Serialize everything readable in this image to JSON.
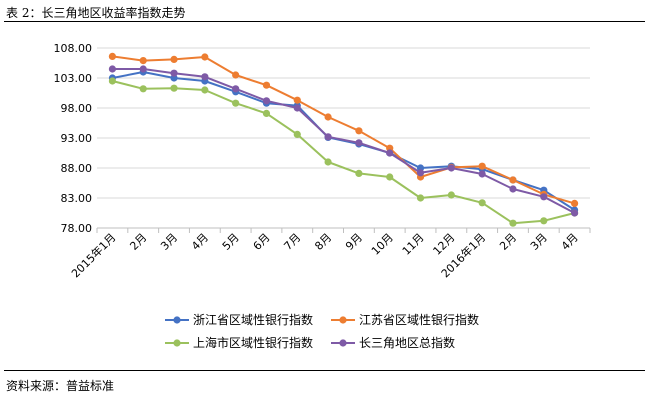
{
  "caption": {
    "label": "表 2：长三角地区收益率指数走势"
  },
  "source": {
    "label": "资料来源：普益标准"
  },
  "chart_data": {
    "type": "line",
    "title": "长三角地区收益率指数走势",
    "xlabel": "",
    "ylabel": "",
    "ylim": [
      78,
      108
    ],
    "ytick_values": [
      78,
      83,
      88,
      93,
      98,
      103,
      108
    ],
    "ytick_labels": [
      "78.00",
      "83.00",
      "88.00",
      "93.00",
      "98.00",
      "103.00",
      "108.00"
    ],
    "grid": true,
    "legend_position": "bottom",
    "categories": [
      "2015年1月",
      "2月",
      "3月",
      "4月",
      "5月",
      "6月",
      "7月",
      "8月",
      "9月",
      "10月",
      "11月",
      "12月",
      "2016年1月",
      "2月",
      "3月",
      "4月"
    ],
    "series": [
      {
        "name": "浙江省区域性银行指数",
        "color": "#4472C4",
        "values": [
          103.0,
          104.0,
          103.0,
          102.5,
          100.7,
          98.8,
          98.4,
          93.1,
          92.0,
          90.5,
          88.0,
          88.3,
          87.8,
          86.0,
          84.3,
          81.0
        ]
      },
      {
        "name": "江苏省区域性银行指数",
        "color": "#ED7D31",
        "values": [
          106.6,
          105.9,
          106.1,
          106.5,
          103.5,
          101.8,
          99.3,
          96.5,
          94.2,
          91.3,
          86.5,
          88.1,
          88.3,
          86.0,
          83.6,
          82.1
        ]
      },
      {
        "name": "上海市区域性银行指数",
        "color": "#9BC15D",
        "values": [
          102.5,
          101.2,
          101.3,
          101.0,
          98.8,
          97.1,
          93.6,
          89.0,
          87.1,
          86.5,
          83.0,
          83.5,
          82.2,
          78.8,
          79.2,
          80.5
        ]
      },
      {
        "name": "长三角地区总指数",
        "color": "#7E5AA6",
        "values": [
          104.5,
          104.5,
          103.8,
          103.2,
          101.2,
          99.2,
          98.0,
          93.2,
          92.2,
          90.5,
          87.2,
          88.0,
          87.0,
          84.5,
          83.2,
          80.5
        ]
      }
    ]
  }
}
